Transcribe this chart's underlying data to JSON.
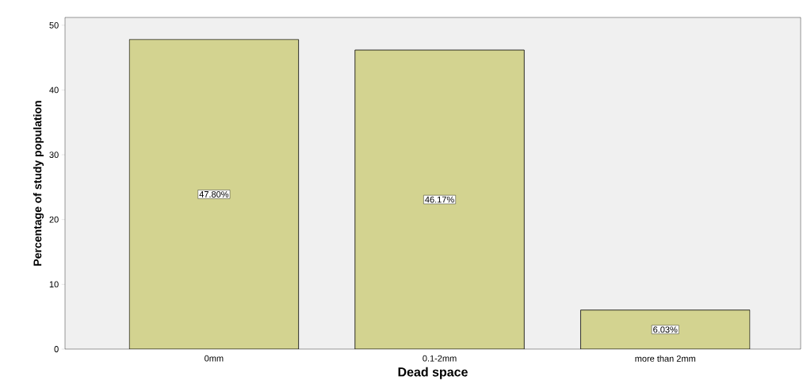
{
  "chart_data": {
    "type": "bar",
    "xlabel": "Dead space",
    "ylabel": "Percentage of study population",
    "categories": [
      "0mm",
      "0.1-2mm",
      "more than 2mm"
    ],
    "values": [
      47.8,
      46.17,
      6.03
    ],
    "value_labels": [
      "47.80%",
      "46.17%",
      "6.03%"
    ],
    "color": "#d3d390",
    "ylim": [
      0,
      51.2
    ],
    "yticks": [
      0,
      10,
      20,
      30,
      40,
      50
    ]
  }
}
